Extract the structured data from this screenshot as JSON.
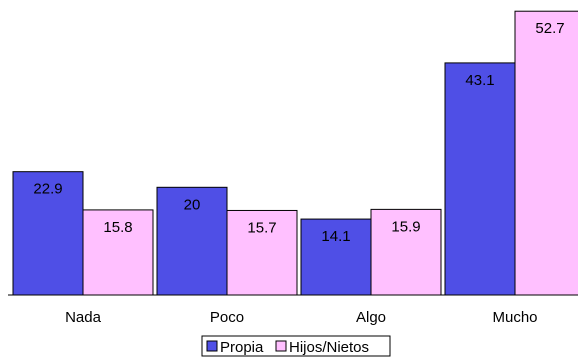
{
  "chart_data": {
    "type": "bar",
    "title": "",
    "xlabel": "",
    "ylabel": "",
    "categories": [
      "Nada",
      "Poco",
      "Algo",
      "Mucho"
    ],
    "series": [
      {
        "name": "Propia",
        "values": [
          22.9,
          20,
          14.1,
          43.1
        ],
        "color": "#4f4fe6"
      },
      {
        "name": "Hijos/Nietos",
        "values": [
          15.8,
          15.7,
          15.9,
          52.7
        ],
        "color": "#ffc0ff"
      }
    ],
    "value_labels": [
      [
        "22.9",
        "20",
        "14.1",
        "43.1"
      ],
      [
        "15.8",
        "15.7",
        "15.9",
        "52.7"
      ]
    ],
    "ylim": [
      0,
      55
    ],
    "grid": false,
    "legend_position": "bottom"
  }
}
